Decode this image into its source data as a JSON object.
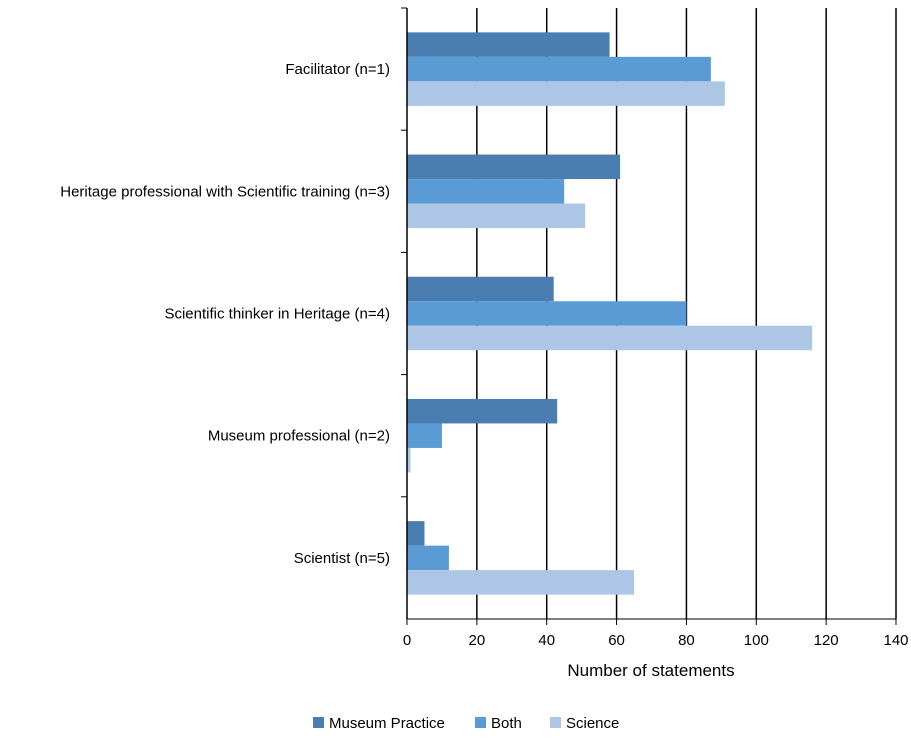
{
  "chart_data": {
    "type": "bar",
    "orientation": "horizontal",
    "title": "",
    "xlabel": "Number of statements",
    "ylabel": "",
    "xlim": [
      0,
      140
    ],
    "xticks": [
      0,
      20,
      40,
      60,
      80,
      100,
      120,
      140
    ],
    "grid": "vertical",
    "legend_position": "bottom",
    "categories": [
      "Facilitator (n=1)",
      "Heritage professional with Scientific training (n=3)",
      "Scientific thinker in Heritage (n=4)",
      "Museum professional (n=2)",
      "Scientist (n=5)"
    ],
    "series": [
      {
        "name": "Museum Practice",
        "color": "#4a7eb0",
        "values": [
          58,
          61,
          42,
          43,
          5
        ]
      },
      {
        "name": "Both",
        "color": "#5b9bd5",
        "values": [
          87,
          45,
          80,
          10,
          12
        ]
      },
      {
        "name": "Science",
        "color": "#adc6e6",
        "values": [
          91,
          51,
          116,
          1,
          65
        ]
      }
    ]
  }
}
